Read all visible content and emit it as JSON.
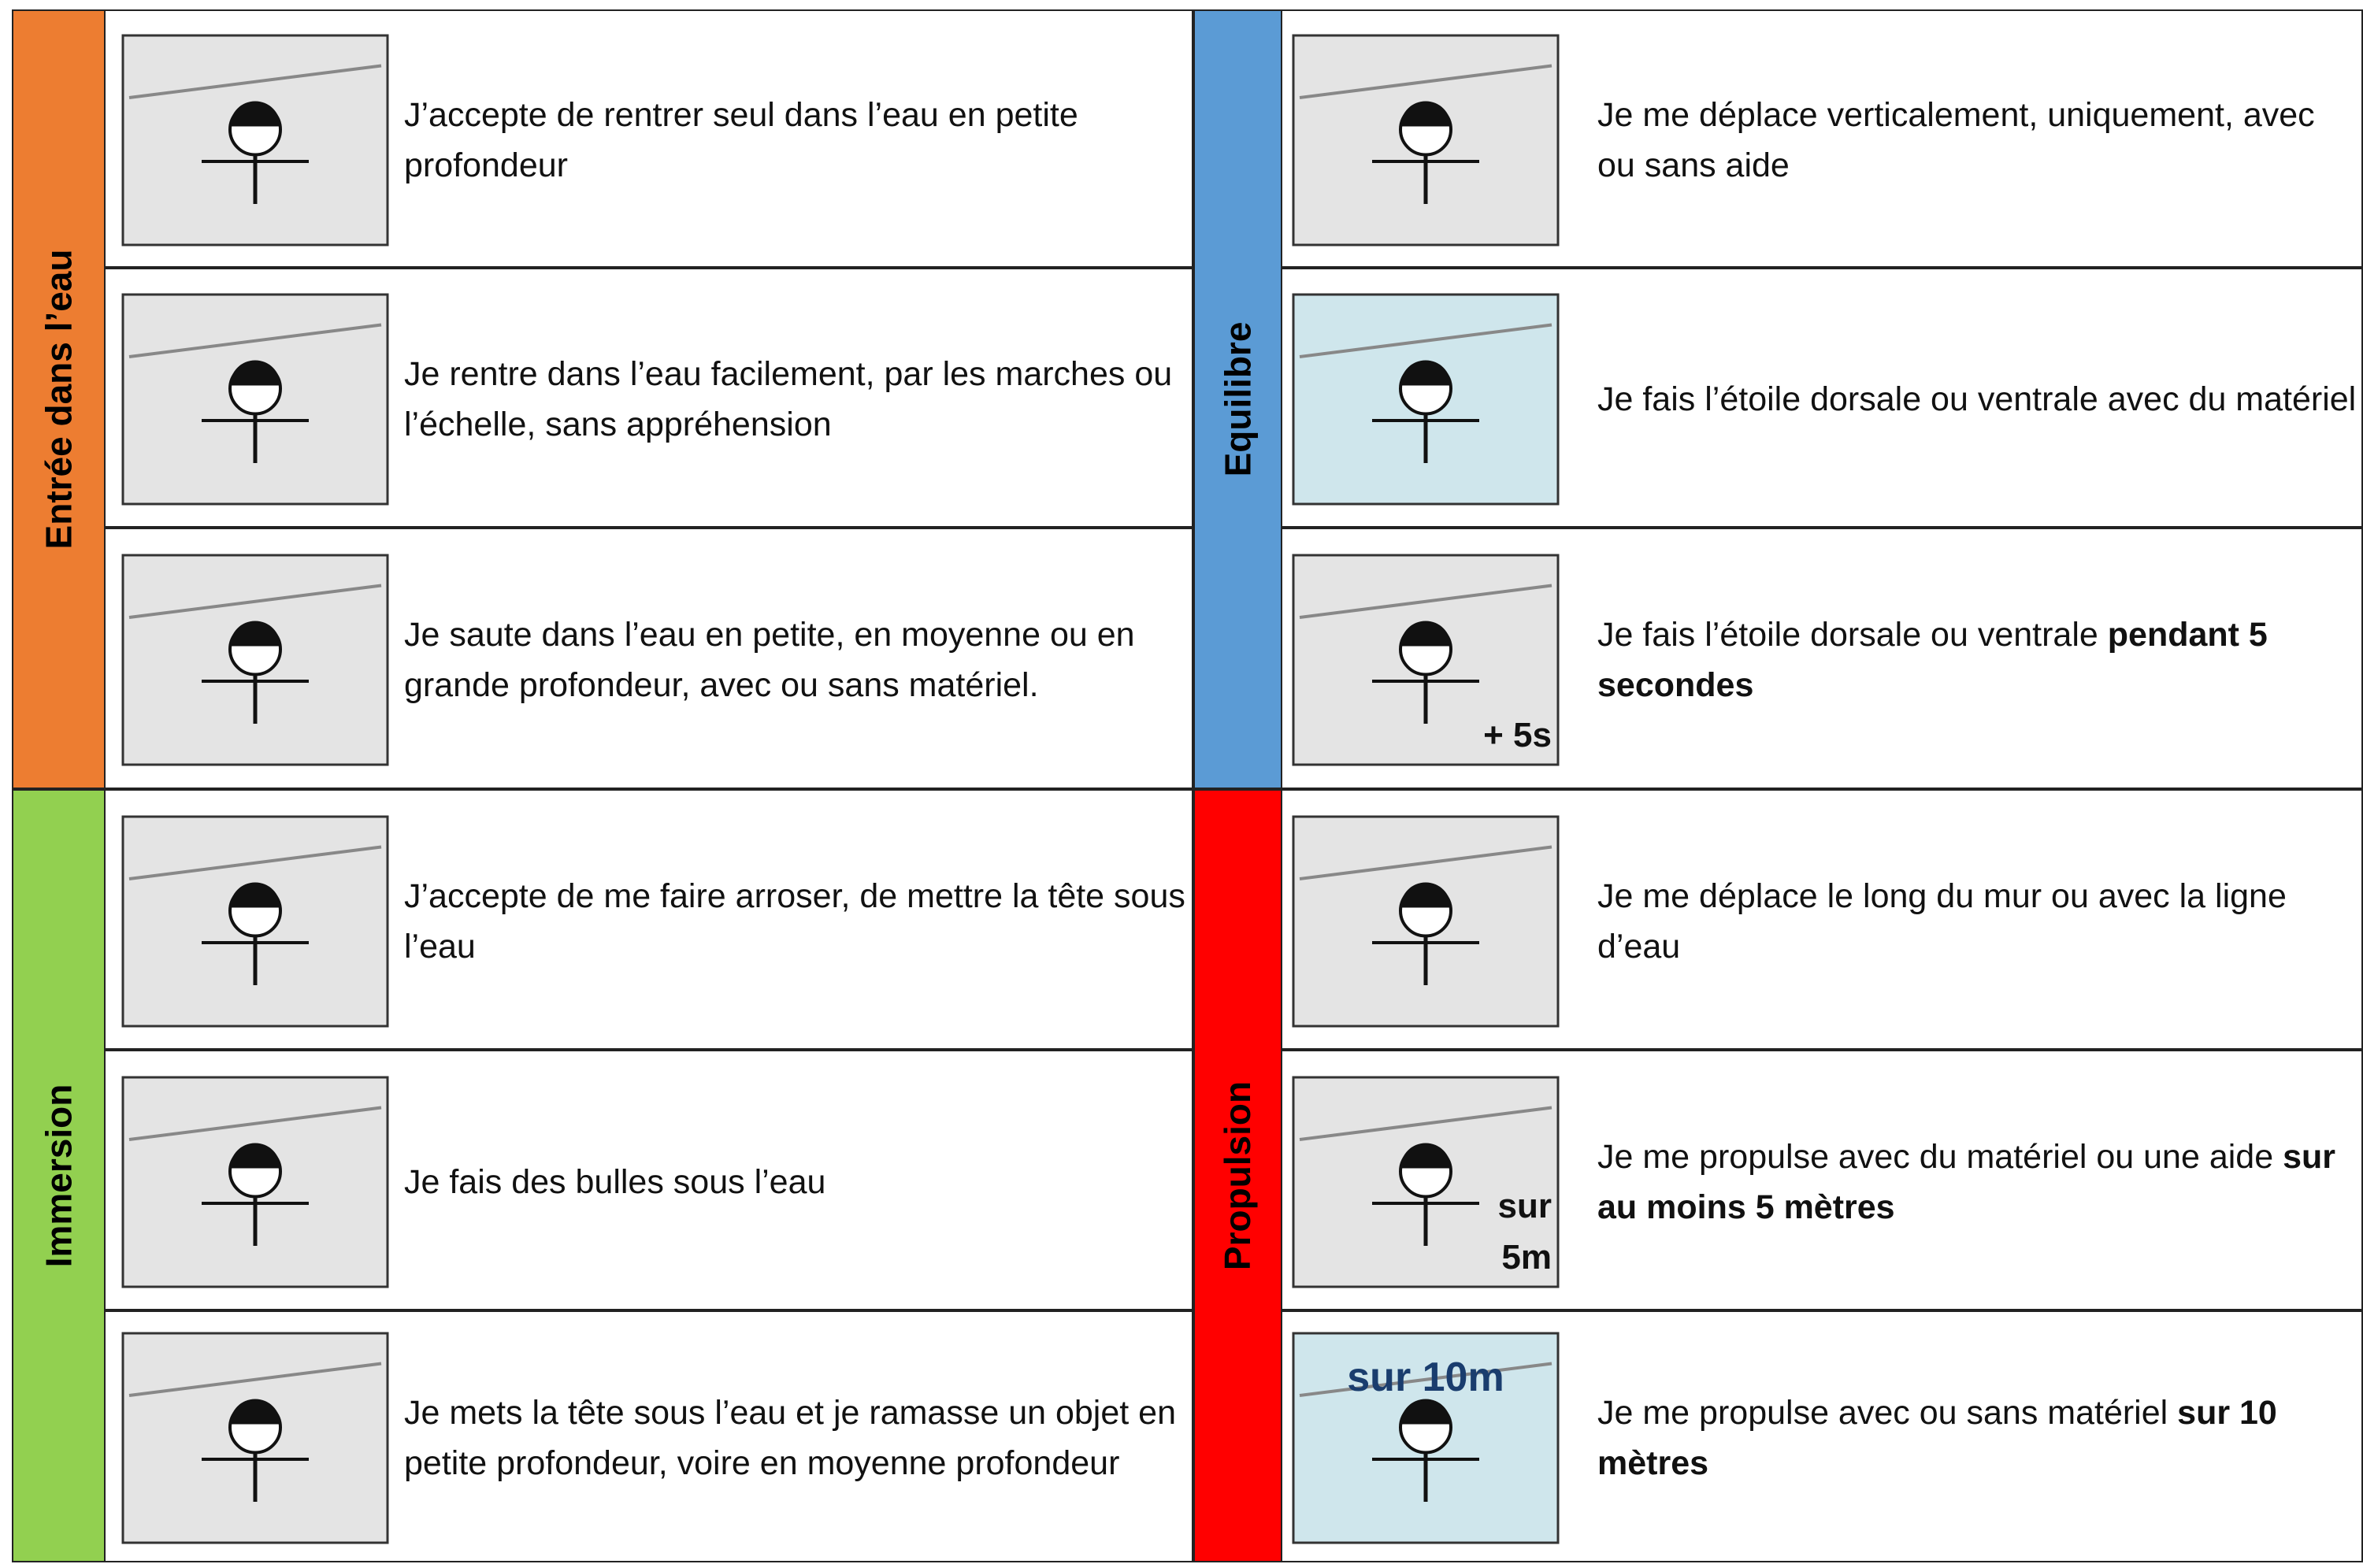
{
  "sections": [
    {
      "label": "Entrée dans l’eau",
      "color": "#ed7d31",
      "rows": [
        {
          "text": "J’accepte de rentrer seul dans l’eau en petite profondeur"
        },
        {
          "text": "Je rentre dans l’eau facilement, par les marches ou l’échelle, sans appréhension"
        },
        {
          "text": "Je saute dans l’eau en petite, en moyenne ou en grande profondeur, avec ou sans matériel."
        }
      ]
    },
    {
      "label": "Immersion",
      "color": "#92d050",
      "rows": [
        {
          "text": "J’accepte de me faire arroser, de mettre la tête sous l’eau"
        },
        {
          "text": "Je fais des bulles sous l’eau"
        },
        {
          "text": "Je mets la tête sous l’eau et je ramasse un objet en petite profondeur, voire en moyenne profondeur"
        }
      ]
    },
    {
      "label": "Equilibre",
      "color": "#5b9bd5",
      "rows": [
        {
          "text": "Je me déplace verticalement, uniquement, avec ou sans aide"
        },
        {
          "text": "Je fais l’étoile dorsale ou ventrale avec du matériel"
        },
        {
          "text": "Je fais l’étoile dorsale ou ventrale ",
          "bold": "pendant 5 secondes",
          "image_text": [
            "+ 5s"
          ]
        }
      ]
    },
    {
      "label": "Propulsion",
      "color": "#ff0000",
      "rows": [
        {
          "text": "Je me déplace le long du mur ou avec la ligne d’eau"
        },
        {
          "text": "Je me propulse avec du matériel ou une aide ",
          "bold": "sur au moins 5 mètres",
          "image_text": [
            "sur",
            "5m"
          ]
        },
        {
          "text": "Je me propulse avec ou sans matériel ",
          "bold": "sur 10 mètres",
          "image_text": [
            "sur 10m"
          ]
        }
      ]
    }
  ]
}
